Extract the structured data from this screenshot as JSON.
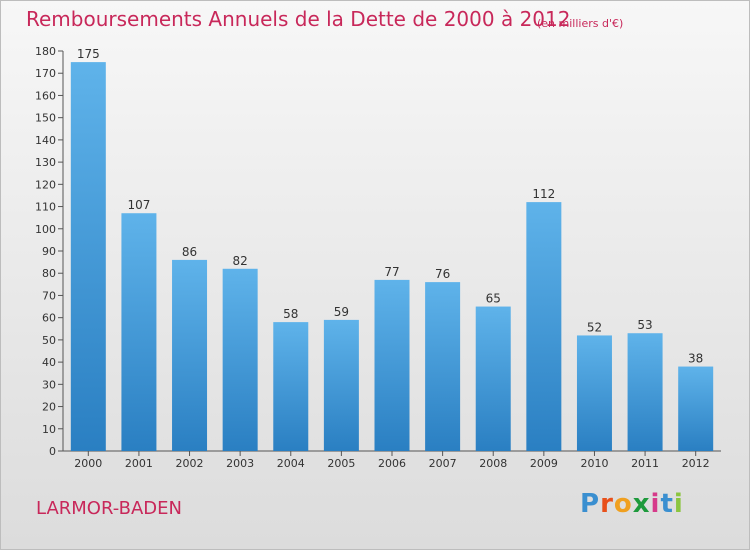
{
  "header": {
    "title": "Remboursements Annuels de la Dette de 2000 à 2012",
    "subtitle": "(en milliers d'€)"
  },
  "footer": {
    "commune": "LARMOR-BADEN",
    "logo_text": "Proxiti",
    "logo_letters": [
      "P",
      "r",
      "o",
      "x",
      "i",
      "t",
      "i"
    ],
    "logo_colors": [
      "#3a8fd0",
      "#e8501a",
      "#f0a020",
      "#1e9a3c",
      "#d63a8a",
      "#3a8fd0",
      "#8bc53f"
    ]
  },
  "chart_data": {
    "type": "bar",
    "categories": [
      "2000",
      "2001",
      "2002",
      "2003",
      "2004",
      "2005",
      "2006",
      "2007",
      "2008",
      "2009",
      "2010",
      "2011",
      "2012"
    ],
    "values": [
      175,
      107,
      86,
      82,
      58,
      59,
      77,
      76,
      65,
      112,
      52,
      53,
      38
    ],
    "title": "Remboursements Annuels de la Dette de 2000 à 2012",
    "subtitle": "(en milliers d'€)",
    "xlabel": "",
    "ylabel": "",
    "ylim": [
      0,
      180
    ],
    "yticks": [
      0,
      10,
      20,
      30,
      40,
      50,
      60,
      70,
      80,
      90,
      100,
      110,
      120,
      130,
      140,
      150,
      160,
      170,
      180
    ],
    "grid": false,
    "colors": {
      "bar_top": "#5fb3ea",
      "bar_bottom": "#2a7fc2"
    }
  }
}
